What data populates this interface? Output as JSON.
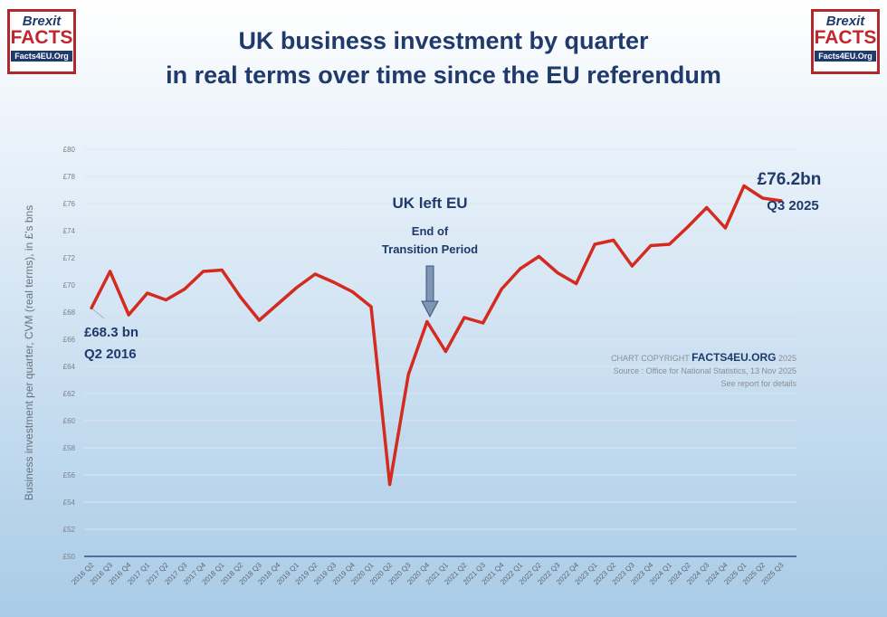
{
  "logo": {
    "line1": "Brexit",
    "line2": "FACTS",
    "line3": "Facts4EU.Org"
  },
  "title": {
    "line1": "UK business investment by quarter",
    "line2": "in real terms over time since the EU referendum"
  },
  "copyright": {
    "prefix": "CHART COPYRIGHT",
    "brand": "FACTS4EU.ORG",
    "year": "2025",
    "source": "Source : Office for National Statistics, 13 Nov 2025",
    "note": "See report for details"
  },
  "chart_data": {
    "type": "line",
    "title": "",
    "xlabel": "",
    "ylabel": "Business investment per quarter, CVM (real terms), in £'s bns",
    "ylim": [
      50,
      80
    ],
    "ytick_step": 2,
    "ytick_prefix": "£",
    "grid": true,
    "line_color": "#d42a1f",
    "categories": [
      "2016 Q2",
      "2016 Q3",
      "2016 Q4",
      "2017 Q1",
      "2017 Q2",
      "2017 Q3",
      "2017 Q4",
      "2018 Q1",
      "2018 Q2",
      "2018 Q3",
      "2018 Q4",
      "2019 Q1",
      "2019 Q2",
      "2019 Q3",
      "2019 Q4",
      "2020 Q1",
      "2020 Q2",
      "2020 Q3",
      "2020 Q4",
      "2021 Q1",
      "2021 Q2",
      "2021 Q3",
      "2021 Q4",
      "2022 Q1",
      "2022 Q2",
      "2022 Q3",
      "2022 Q4",
      "2023 Q1",
      "2023 Q2",
      "2023 Q3",
      "2023 Q4",
      "2024 Q1",
      "2024 Q2",
      "2024 Q3",
      "2024 Q4",
      "2025 Q1",
      "2025 Q2",
      "2025 Q3"
    ],
    "values": [
      68.3,
      71.0,
      67.8,
      69.4,
      68.9,
      69.7,
      71.0,
      71.1,
      69.1,
      67.4,
      68.6,
      69.8,
      70.8,
      70.2,
      69.5,
      68.4,
      55.3,
      63.4,
      67.3,
      65.1,
      67.6,
      67.2,
      69.7,
      71.2,
      72.1,
      70.9,
      70.1,
      73.0,
      73.3,
      71.4,
      72.9,
      73.0,
      74.3,
      75.7,
      74.2,
      77.3,
      76.4,
      76.2
    ],
    "annotations": {
      "start_value": "£68.3 bn",
      "start_period": "Q2 2016",
      "end_value": "£76.2bn",
      "end_period": "Q3 2025",
      "event_title": "UK left EU",
      "event_line1": "End of",
      "event_line2": "Transition Period"
    }
  }
}
